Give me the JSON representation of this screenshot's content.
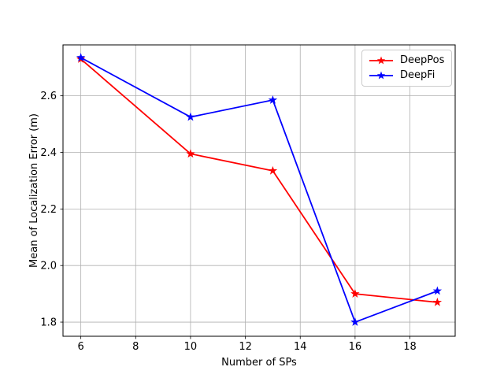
{
  "chart_data": {
    "type": "line",
    "title": "",
    "xlabel": "Number of SPs",
    "ylabel": "Mean of Localization Error (m)",
    "x": [
      6,
      10,
      13,
      16,
      19
    ],
    "series": [
      {
        "name": "DeepPos",
        "color": "#ff0000",
        "marker": "star",
        "values": [
          2.73,
          2.395,
          2.335,
          1.9,
          1.87
        ]
      },
      {
        "name": "DeepFi",
        "color": "#0000ff",
        "marker": "star",
        "values": [
          2.735,
          2.525,
          2.585,
          1.8,
          1.91
        ]
      }
    ],
    "xlim": [
      5.35,
      19.65
    ],
    "ylim": [
      1.75,
      2.78
    ],
    "xticks": [
      6,
      8,
      10,
      12,
      14,
      16,
      18
    ],
    "yticks": [
      1.8,
      2.0,
      2.2,
      2.4,
      2.6
    ],
    "grid": true,
    "grid_color": "#b0b0b0",
    "axis_color": "#000000",
    "background": "#ffffff",
    "legend_position": "upper right"
  }
}
